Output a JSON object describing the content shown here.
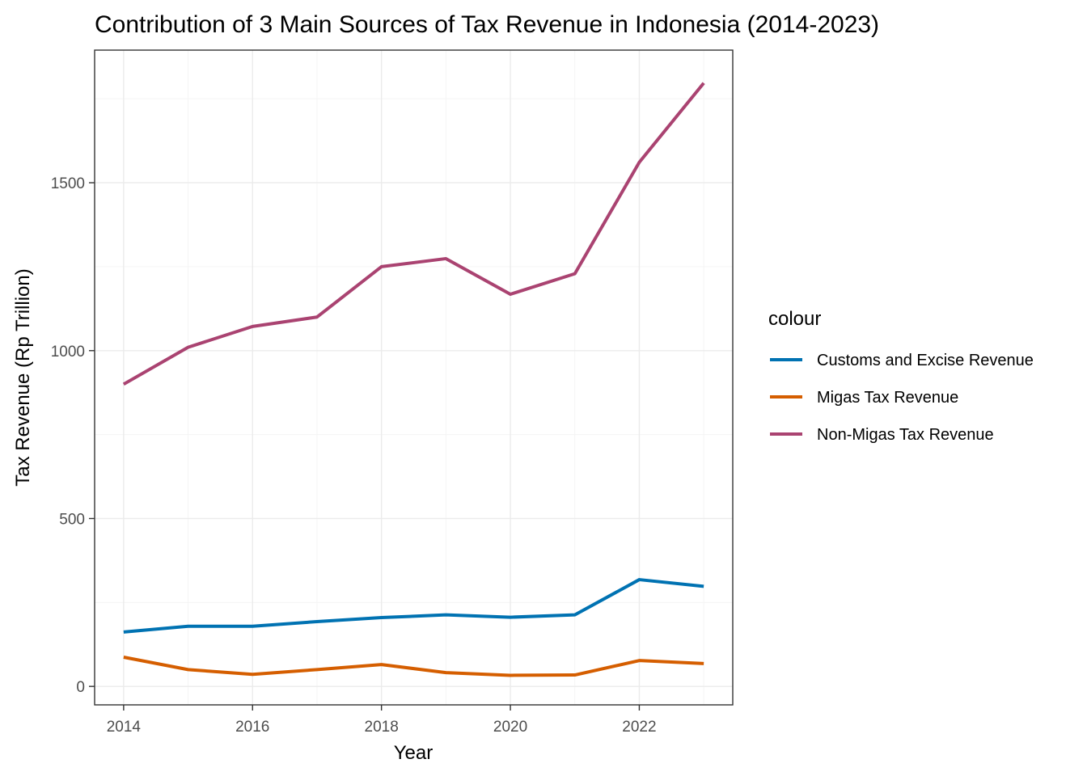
{
  "chart_data": {
    "type": "line",
    "title": "Contribution of 3 Main Sources of Tax Revenue in Indonesia (2014-2023)",
    "xlabel": "Year",
    "ylabel": "Tax Revenue (Rp Trillion)",
    "x": [
      2014,
      2015,
      2016,
      2017,
      2018,
      2019,
      2020,
      2021,
      2022,
      2023
    ],
    "xlim": [
      2013.55,
      2023.45
    ],
    "ylim": [
      -55,
      1895
    ],
    "xticks": [
      2014,
      2016,
      2018,
      2020,
      2022
    ],
    "yticks": [
      0,
      500,
      1000,
      1500
    ],
    "grid": true,
    "legend": {
      "title": "colour",
      "position": "right"
    },
    "series": [
      {
        "name": "Customs and Excise Revenue",
        "color": "#0072B2",
        "values": [
          162,
          179,
          179,
          193,
          205,
          213,
          206,
          213,
          318,
          298
        ]
      },
      {
        "name": "Migas Tax Revenue",
        "color": "#D55E00",
        "values": [
          87,
          50,
          36,
          50,
          65,
          41,
          33,
          34,
          77,
          68
        ]
      },
      {
        "name": "Non-Migas Tax Revenue",
        "color": "#AA4371",
        "values": [
          900,
          1010,
          1072,
          1100,
          1250,
          1274,
          1168,
          1229,
          1561,
          1797
        ]
      }
    ]
  }
}
